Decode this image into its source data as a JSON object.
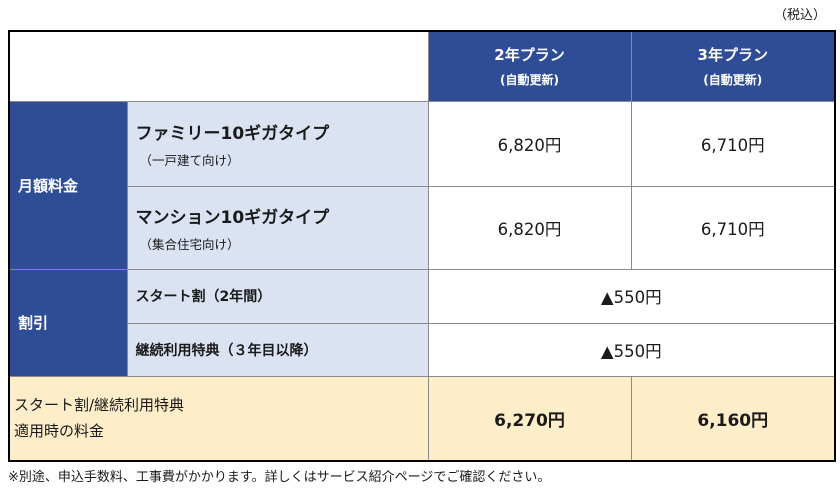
{
  "tax_note": "（税込）",
  "header": {
    "plan_2yr": "2年プラン",
    "plan_2yr_sub": "(自動更新)",
    "plan_3yr": "3年プラン",
    "plan_3yr_sub": "(自動更新)"
  },
  "monthly": {
    "category": "月額料金",
    "rows": [
      {
        "name": "ファミリー10ギガタイプ",
        "sub": "（一戸建て向け）",
        "price_2yr": "6,820円",
        "price_3yr": "6,710円"
      },
      {
        "name": "マンション10ギガタイプ",
        "sub": "（集合住宅向け）",
        "price_2yr": "6,820円",
        "price_3yr": "6,710円"
      }
    ]
  },
  "discount": {
    "category": "割引",
    "rows": [
      {
        "name": "スタート割（2年間）",
        "value": "▲550円"
      },
      {
        "name": "継続利用特典（３年目以降）",
        "value": "▲550円"
      }
    ]
  },
  "total": {
    "label_line1": "スタート割/継続利用特典",
    "label_line2": "適用時の料金",
    "price_2yr": "6,270円",
    "price_3yr": "6,160円"
  },
  "footnote": "※別途、申込手数料、工事費がかかります。詳しくはサービス紹介ページでご確認ください。"
}
